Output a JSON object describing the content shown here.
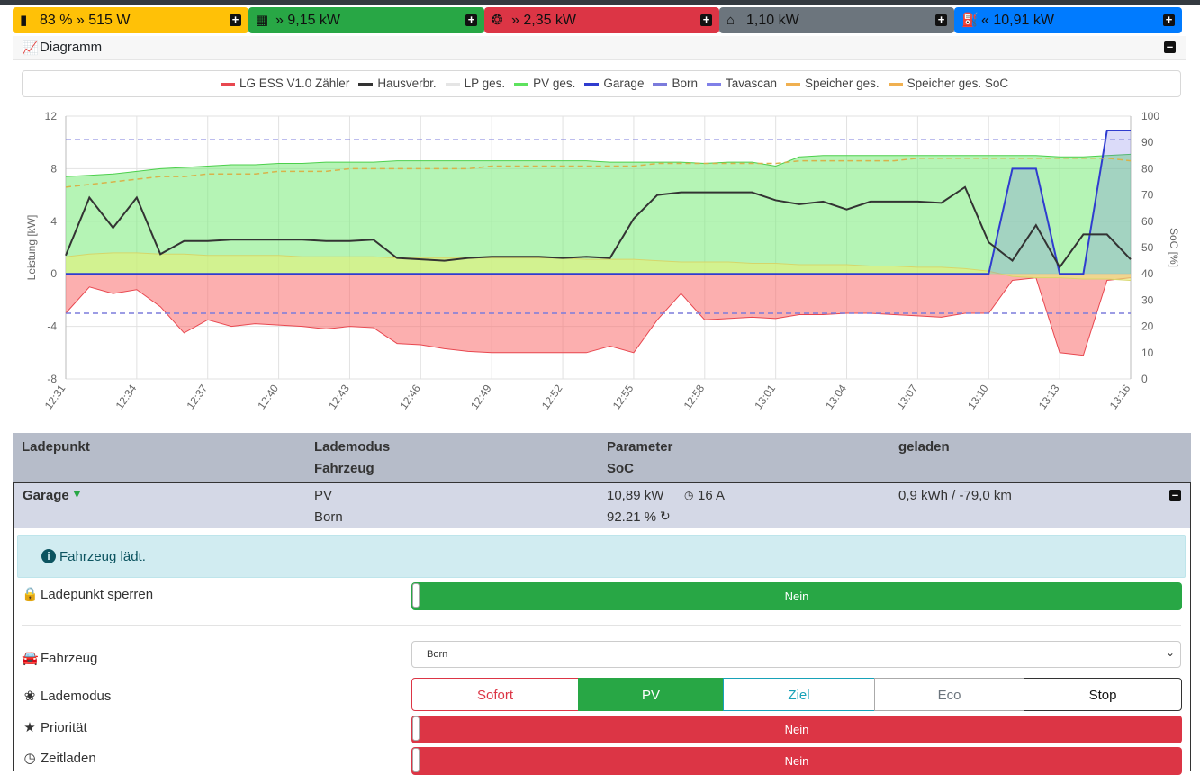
{
  "status_bar": [
    {
      "label": "83 % » 515 W",
      "color": "#ffc107",
      "icon": "battery-icon"
    },
    {
      "label": "» 9,15 kW",
      "color": "#28a745",
      "icon": "solar-panel-icon"
    },
    {
      "label": "» 2,35 kW",
      "color": "#dc3545",
      "icon": "power-tower-icon"
    },
    {
      "label": "1,10 kW",
      "color": "#6c757d",
      "icon": "home-icon"
    },
    {
      "label": "« 10,91 kW",
      "color": "#007bff",
      "icon": "charging-station-icon"
    }
  ],
  "diagram": {
    "title": "Diagramm"
  },
  "chart_data": {
    "type": "area",
    "ylabel": "Leistung [kW]",
    "y2label": "SoC [%]",
    "ylim": [
      -8,
      12
    ],
    "y2lim": [
      0,
      100
    ],
    "y_ticks": [
      "12",
      "8",
      "4",
      "0",
      "-4",
      "-8"
    ],
    "y2_ticks": [
      "100",
      "90",
      "80",
      "70",
      "60",
      "50",
      "40",
      "30",
      "20",
      "10",
      "0"
    ],
    "x_ticks": [
      "12:31",
      "12:34",
      "12:37",
      "12:40",
      "12:43",
      "12:46",
      "12:49",
      "12:52",
      "12:55",
      "12:58",
      "13:01",
      "13:04",
      "13:07",
      "13:10",
      "13:13",
      "13:16"
    ],
    "x": [
      0,
      1,
      2,
      3,
      4,
      5,
      6,
      7,
      8,
      9,
      10,
      11,
      12,
      13,
      14,
      15,
      16,
      17,
      18,
      19,
      20,
      21,
      22,
      23,
      24,
      25,
      26,
      27,
      28,
      29,
      30,
      31,
      32,
      33,
      34,
      35,
      36,
      37,
      38,
      39,
      40,
      41,
      42,
      43,
      44,
      45
    ],
    "legend": [
      {
        "name": "LG ESS V1.0 Zähler",
        "color": "#e8474f"
      },
      {
        "name": "Hausverbr.",
        "color": "#333333"
      },
      {
        "name": "LP ges.",
        "color": "#e5e5e5"
      },
      {
        "name": "PV ges.",
        "color": "#5ee25e"
      },
      {
        "name": "Garage",
        "color": "#2f3ccf"
      },
      {
        "name": "Born",
        "color": "#7b7bdc"
      },
      {
        "name": "Tavascan",
        "color": "#8080e8"
      },
      {
        "name": "Speicher ges.",
        "color": "#f0b050"
      },
      {
        "name": "Speicher ges. SoC",
        "color": "#f0b050"
      }
    ],
    "series": [
      {
        "name": "PV ges.",
        "values": [
          7.4,
          7.5,
          7.6,
          7.8,
          8.0,
          8.1,
          8.2,
          8.3,
          8.3,
          8.4,
          8.4,
          8.5,
          8.5,
          8.5,
          8.6,
          8.6,
          8.6,
          8.6,
          8.6,
          8.6,
          8.6,
          8.6,
          8.6,
          8.5,
          8.5,
          8.5,
          8.5,
          8.4,
          8.5,
          8.5,
          8.2,
          8.9,
          9.0,
          9.0,
          9.0,
          9.0,
          9.0,
          9.0,
          9.0,
          9.0,
          9.0,
          9.0,
          8.9,
          8.9,
          9.0,
          9.1
        ]
      },
      {
        "name": "LG ESS V1.0 Zähler",
        "values": [
          -3.0,
          -1.0,
          -1.5,
          -1.2,
          -2.5,
          -4.5,
          -3.5,
          -4.0,
          -3.8,
          -3.9,
          -4.0,
          -4.2,
          -4.0,
          -4.1,
          -5.3,
          -5.4,
          -5.7,
          -5.9,
          -6.0,
          -6.0,
          -6.0,
          -6.0,
          -6.0,
          -5.5,
          -6.0,
          -3.5,
          -1.5,
          -3.5,
          -3.4,
          -3.3,
          -3.4,
          -3.1,
          -3.1,
          -3.0,
          -3.0,
          -3.1,
          -3.2,
          -3.3,
          -3.0,
          -3.0,
          -0.5,
          -0.3,
          -6.0,
          -6.2,
          -0.5,
          -0.3
        ]
      },
      {
        "name": "Hausverbr.",
        "values": [
          1.4,
          5.8,
          3.5,
          5.8,
          1.5,
          2.5,
          2.5,
          2.6,
          2.6,
          2.6,
          2.6,
          2.5,
          2.5,
          2.6,
          1.2,
          1.1,
          1.0,
          1.2,
          1.3,
          1.3,
          1.3,
          1.2,
          1.3,
          1.2,
          4.2,
          6.0,
          6.2,
          6.2,
          6.2,
          6.2,
          5.6,
          5.3,
          5.5,
          4.9,
          5.5,
          5.5,
          5.5,
          5.4,
          6.6,
          2.4,
          1.0,
          3.7,
          0.5,
          3.0,
          3.0,
          1.1
        ]
      },
      {
        "name": "Garage",
        "values": [
          0,
          0,
          0,
          0,
          0,
          0,
          0,
          0,
          0,
          0,
          0,
          0,
          0,
          0,
          0,
          0,
          0,
          0,
          0,
          0,
          0,
          0,
          0,
          0,
          0,
          0,
          0,
          0,
          0,
          0,
          0,
          0,
          0,
          0,
          0,
          0,
          0,
          0,
          0,
          0,
          8.0,
          8.0,
          0,
          0,
          10.9,
          10.9
        ]
      },
      {
        "name": "Speicher ges. SoC",
        "values": [
          73,
          74,
          75,
          76,
          77,
          77,
          78,
          78,
          78,
          79,
          79,
          79,
          80,
          80,
          80,
          80,
          80,
          80,
          81,
          81,
          81,
          81,
          81,
          81,
          81,
          82,
          82,
          82,
          82,
          82,
          82,
          83,
          83,
          83,
          83,
          83,
          84,
          84,
          84,
          84,
          84,
          84,
          84,
          84,
          84,
          83
        ]
      },
      {
        "name": "Speicher ges.",
        "values": [
          1.3,
          1.5,
          1.6,
          1.6,
          1.5,
          1.5,
          1.4,
          1.4,
          1.4,
          1.4,
          1.3,
          1.3,
          1.3,
          1.3,
          1.2,
          1.2,
          1.2,
          1.2,
          1.2,
          1.2,
          1.2,
          1.2,
          1.1,
          1.1,
          1.1,
          1.0,
          0.9,
          0.9,
          0.9,
          0.8,
          0.8,
          0.7,
          0.7,
          0.7,
          0.6,
          0.6,
          0.5,
          0.5,
          0.4,
          0.2,
          -0.2,
          -0.3,
          -0.3,
          -0.4,
          -0.4,
          -0.5
        ]
      }
    ],
    "reference_lines": [
      {
        "value": 10.2
      },
      {
        "value": -3.0
      }
    ],
    "grid": true
  },
  "table": {
    "headers": {
      "col1": "Ladepunkt",
      "col2a": "Lademodus",
      "col2b": "Fahrzeug",
      "col3a": "Parameter",
      "col3b": "SoC",
      "col4": "geladen"
    },
    "row": {
      "name": "Garage",
      "mode": "PV",
      "vehicle": "Born",
      "param": "10,89 kW",
      "current": "16 A",
      "soc": "92.21 %",
      "charged": "0,9 kWh / -79,0 km"
    }
  },
  "alert": {
    "text": "Fahrzeug lädt."
  },
  "settings": {
    "lock_label": "Ladepunkt sperren",
    "lock_value": "Nein",
    "vehicle_label": "Fahrzeug",
    "vehicle_value": "Born",
    "mode_label": "Lademodus",
    "modes": [
      "Sofort",
      "PV",
      "Ziel",
      "Eco",
      "Stop"
    ],
    "active_mode": "PV",
    "priority_label": "Priorität",
    "priority_value": "Nein",
    "timed_label": "Zeitladen",
    "timed_value": "Nein"
  }
}
